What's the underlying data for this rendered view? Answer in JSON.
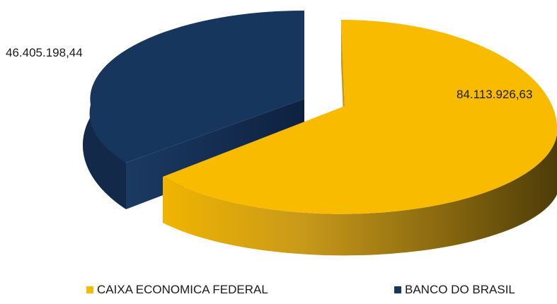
{
  "chart_data": {
    "type": "pie",
    "title": "",
    "categories": [
      "CAIXA ECONOMICA FEDERAL",
      "BANCO DO BRASIL"
    ],
    "values": [
      84113926.63,
      46405198.44
    ],
    "data_labels": [
      "84.113.926,63",
      "46.405.198,44"
    ],
    "colors": [
      "#F9BB00",
      "#17365D"
    ],
    "legend_position": "bottom",
    "style": "3d-exploded"
  }
}
